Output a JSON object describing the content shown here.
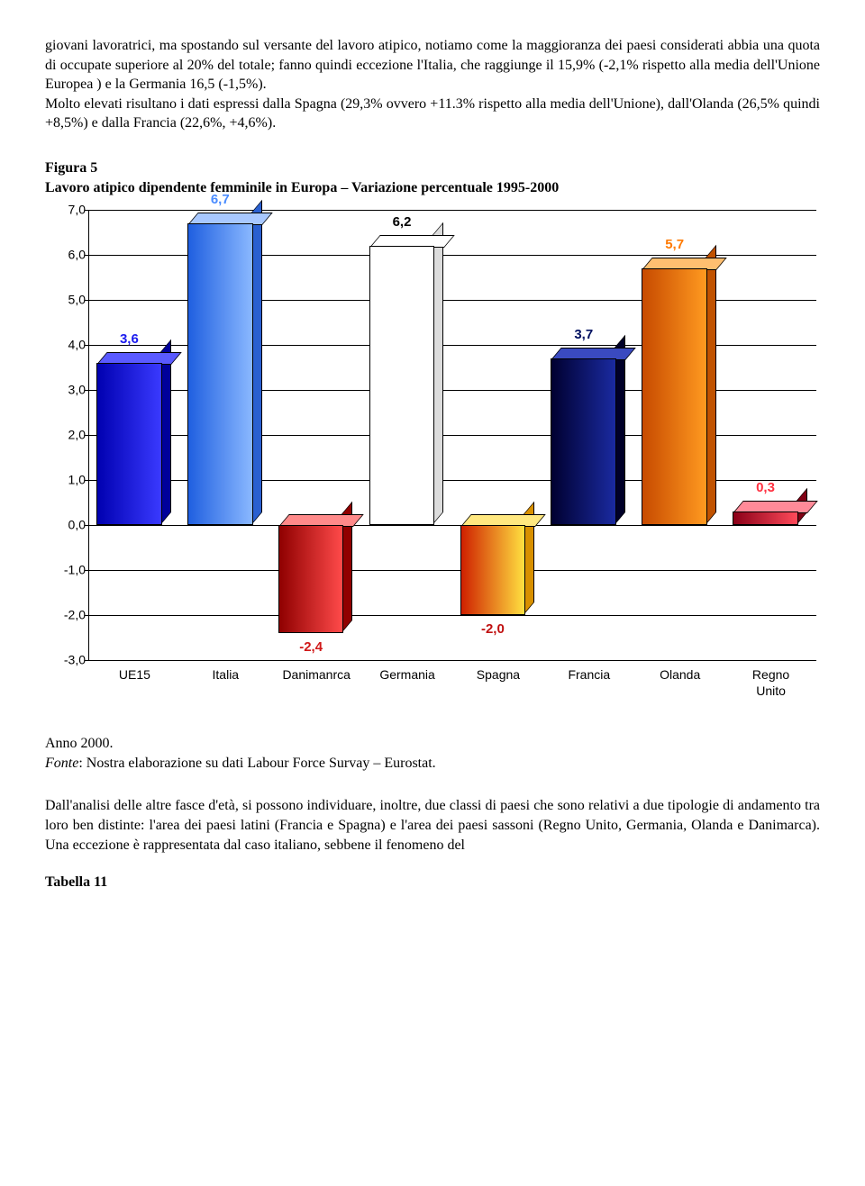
{
  "paragraph1": "giovani lavoratrici, ma spostando sul versante del lavoro atipico, notiamo come la maggioranza dei paesi considerati abbia una quota di occupate superiore al 20% del totale; fanno quindi eccezione l'Italia, che raggiunge il 15,9% (-2,1% rispetto alla media dell'Unione Europea ) e la Germania 16,5 (-1,5%).",
  "paragraph2": "Molto elevati risultano i dati espressi dalla Spagna (29,3% ovvero +11.3% rispetto alla media dell'Unione), dall'Olanda (26,5% quindi +8,5%) e dalla Francia (22,6%, +4,6%).",
  "figure_label": "Figura 5",
  "figure_title": "Lavoro atipico dipendente femminile in Europa – Variazione percentuale 1995-2000",
  "chart": {
    "ymin": -3.0,
    "ymax": 7.0,
    "ystep": 1.0,
    "yticks": [
      "-3,0",
      "-2,0",
      "-1,0",
      "0,0",
      "1,0",
      "2,0",
      "3,0",
      "4,0",
      "5,0",
      "6,0",
      "7,0"
    ],
    "categories": [
      "UE15",
      "Italia",
      "Danimanrca",
      "Germania",
      "Spagna",
      "Francia",
      "Olanda",
      "Regno\nUnito"
    ],
    "values": [
      3.6,
      6.7,
      -2.4,
      6.2,
      -2.0,
      3.7,
      5.7,
      0.3
    ],
    "value_labels": [
      "3,6",
      "6,7",
      "-2,4",
      "6,2",
      "-2,0",
      "3,7",
      "5,7",
      "0,3"
    ],
    "bar_front_colors": [
      "#1a1aef",
      "#4a8cff",
      "#e02020",
      "#ffffff",
      "#ffcc00",
      "#001060",
      "#ff7a00",
      "#d02030"
    ],
    "bar_gradients": [
      "linear-gradient(to right,#0000b0,#3a3aff)",
      "linear-gradient(to right,#1f5fe0,#8ab8ff)",
      "linear-gradient(to right,#8f0000,#ff4a4a)",
      "#ffffff",
      "linear-gradient(to right,#cf2000,#ffe040)",
      "linear-gradient(to right,#000030,#1a2aa0)",
      "linear-gradient(to right,#c74a00,#ff9a20)",
      "linear-gradient(to right,#8a0018,#ff4a5a)"
    ],
    "bar_top_colors": [
      "#5a5aff",
      "#a8c8ff",
      "#ff8a8a",
      "#ffffff",
      "#ffe880",
      "#3a4ac0",
      "#ffbf70",
      "#ff8a98"
    ],
    "bar_side_colors": [
      "#00009a",
      "#2a60d0",
      "#900000",
      "#dcdcdc",
      "#d89000",
      "#000028",
      "#c05200",
      "#800014"
    ],
    "label_colors": [
      "#1a1aef",
      "#4a8cff",
      "#d01818",
      "#000000",
      "#c01010",
      "#001060",
      "#ff7a00",
      "#ff3040"
    ]
  },
  "caption_year": "Anno 2000.",
  "caption_source_label": "Fonte",
  "caption_source_text": ": Nostra elaborazione su dati Labour Force Survay – Eurostat.",
  "paragraph3": "Dall'analisi delle altre fasce d'età, si possono individuare, inoltre, due classi di paesi che sono relativi a due tipologie di andamento tra loro ben distinte: l'area dei paesi latini (Francia e Spagna) e l'area dei paesi sassoni (Regno Unito, Germania, Olanda e Danimarca). Una eccezione è rappresentata dal caso italiano, sebbene il fenomeno del",
  "table_label": "Tabella 11"
}
